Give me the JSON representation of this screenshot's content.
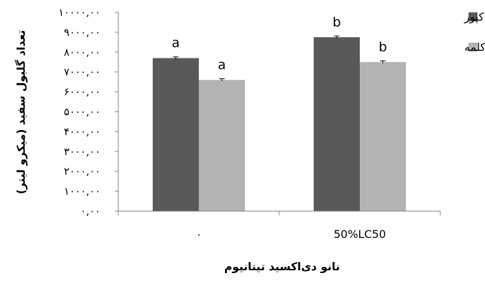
{
  "chart_data": {
    "type": "bar",
    "title": "",
    "xlabel": "نانو دی‌اکسید تیتانیوم",
    "ylabel": "تعداد گلبول سفید (میکرو لیتر)",
    "categories": [
      "۰",
      "50%LC50"
    ],
    "ylim": [
      0,
      10000
    ],
    "yticks": [
      0,
      1000,
      2000,
      3000,
      4000,
      5000,
      6000,
      7000,
      8000,
      9000,
      10000
    ],
    "ytick_labels": [
      "۰,۰۰",
      "۱۰۰۰,۰۰",
      "۲۰۰۰,۰۰",
      "۳۰۰۰,۰۰",
      "۴۰۰۰,۰۰",
      "۵۰۰۰,۰۰",
      "۶۰۰۰,۰۰",
      "۷۰۰۰,۰۰",
      "۸۰۰۰,۰۰",
      "۹۰۰۰,۰۰",
      "۱۰۰۰۰,۰۰"
    ],
    "grid": false,
    "legend_position": "top-right",
    "series": [
      {
        "name": "کپور",
        "color": "#595959",
        "values": [
          7700,
          8750
        ],
        "errors": [
          60,
          60
        ],
        "letters": [
          "a",
          "b"
        ]
      },
      {
        "name": "کلمه",
        "color": "#b3b3b3",
        "values": [
          6600,
          7500
        ],
        "errors": [
          60,
          60
        ],
        "letters": [
          "a",
          "b"
        ]
      }
    ]
  }
}
